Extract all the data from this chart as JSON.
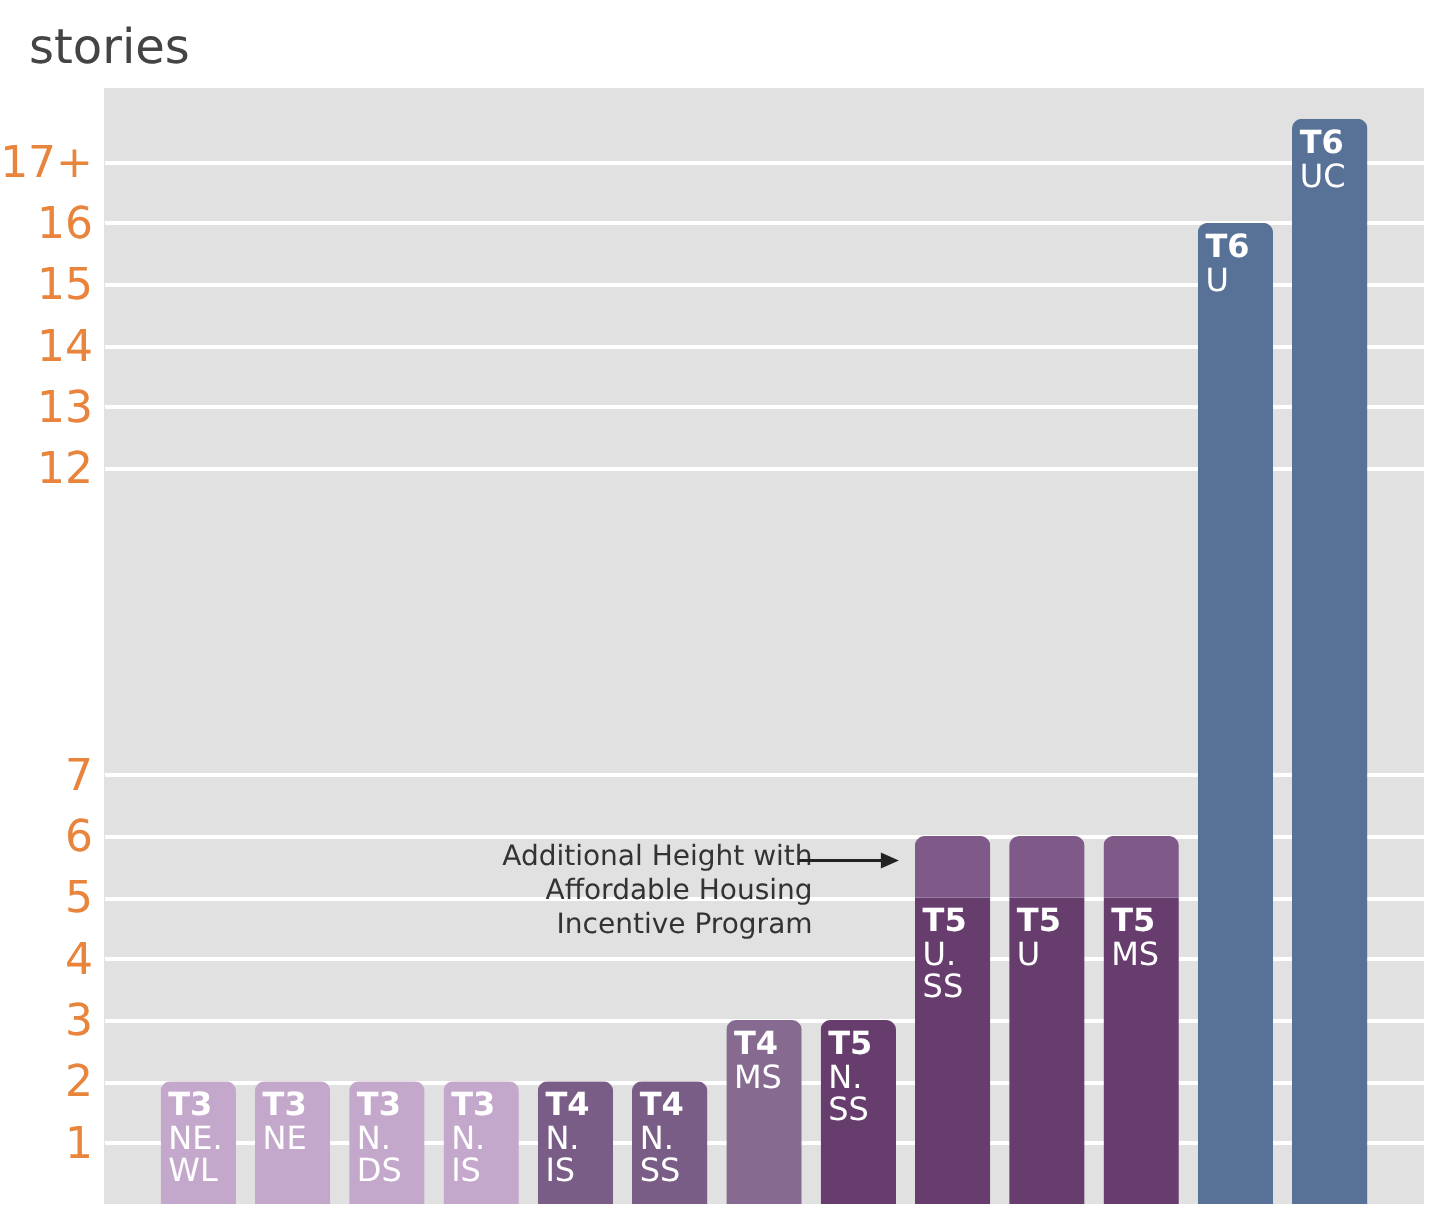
{
  "chart_data": {
    "type": "bar",
    "ylabel": "stories",
    "categories": [
      "T3\nNE.\nWL",
      "T3\nNE",
      "T3\nN.\nDS",
      "T3\nN.\nIS",
      "T4\nN.\nIS",
      "T4\nN.\nSS",
      "T4\nMS",
      "T5\nN.\nSS",
      "T5\nU.\nSS",
      "T5\nU",
      "T5\nMS",
      "T6\nU",
      "T6\nUC"
    ],
    "series": [
      {
        "colors": [
          "#c4a8cc",
          "#c4a8cc",
          "#c4a8cc",
          "#c4a8cc",
          "#7a5d86",
          "#7a5d86",
          "#866a90",
          "#673d6e",
          "#673d6e",
          "#673d6e",
          "#673d6e",
          "#587197",
          "#587197"
        ],
        "values": [
          2,
          2,
          2,
          2,
          2,
          2,
          3,
          3,
          5,
          5,
          5,
          16,
          17.7
        ]
      },
      {
        "color": "#7f5a88",
        "values": [
          null,
          null,
          null,
          null,
          null,
          null,
          null,
          null,
          1,
          1,
          1,
          null,
          null
        ]
      }
    ],
    "stacked": true,
    "ylim": [
      0,
      18.2
    ],
    "yticks": [
      1,
      2,
      3,
      4,
      5,
      6,
      7,
      12,
      13,
      14,
      15,
      16,
      {
        "value": 17,
        "label": "17+"
      }
    ],
    "grid": "y",
    "tick_labels": "y",
    "annotations": [
      "Additional Height with\nAffordable Housing\nIncentive Program"
    ]
  }
}
